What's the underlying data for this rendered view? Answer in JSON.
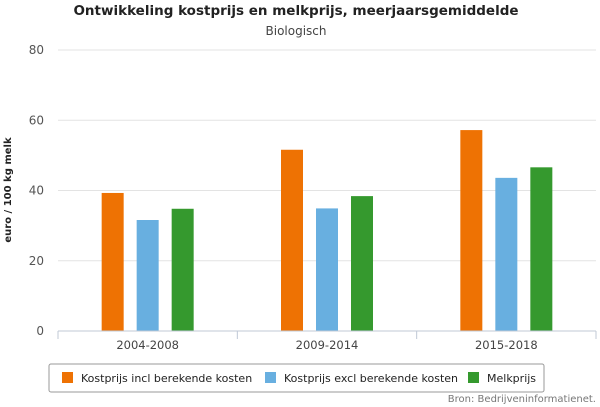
{
  "chart_data": {
    "type": "bar",
    "title": "Ontwikkeling kostprijs en melkprijs, meerjaarsgemiddelde",
    "subtitle": "Biologisch",
    "xlabel": "",
    "ylabel": "euro / 100 kg melk",
    "ylim": [
      0,
      80
    ],
    "yticks": [
      0,
      20,
      40,
      60,
      80
    ],
    "grid": true,
    "legend_position": "bottom",
    "categories": [
      "2004-2008",
      "2009-2014",
      "2015-2018"
    ],
    "series": [
      {
        "name": "Kostprijs incl berekende kosten",
        "color": "#ee7203",
        "values": [
          39.3,
          51.6,
          57.2
        ]
      },
      {
        "name": "Kostprijs excl berekende kosten",
        "color": "#68afe0",
        "values": [
          31.6,
          34.9,
          43.6
        ]
      },
      {
        "name": "Melkprijs",
        "color": "#35992e",
        "values": [
          34.8,
          38.4,
          46.6
        ]
      }
    ],
    "source": "Bron: Bedrijveninformatienet."
  }
}
